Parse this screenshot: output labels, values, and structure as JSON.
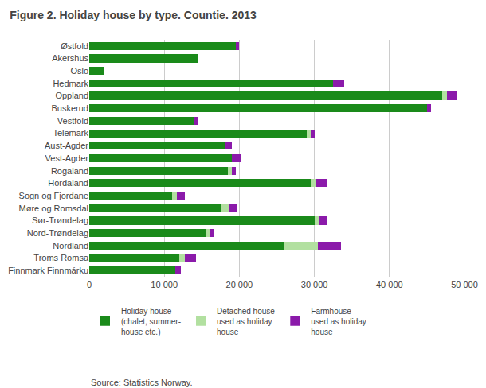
{
  "chart_data": {
    "type": "bar",
    "orientation": "horizontal",
    "stacked": true,
    "title": "Figure 2. Holiday house by type. Countie. 2013",
    "categories": [
      "Østfold",
      "Akershus",
      "Oslo",
      "Hedmark",
      "Oppland",
      "Buskerud",
      "Vestfold",
      "Telemark",
      "Aust-Agder",
      "Vest-Agder",
      "Rogaland",
      "Hordaland",
      "Sogn og Fjordane",
      "Møre og Romsdal",
      "Sør-Trøndelag",
      "Nord-Trøndelag",
      "Nordland",
      "Troms Romsa",
      "Finnmark Finnmárku"
    ],
    "series": [
      {
        "name": "Holiday house\n(chalet, summer-\nhouse etc.)",
        "color": "#1a8a1a",
        "values": [
          19500,
          14500,
          2000,
          32500,
          47000,
          45000,
          14000,
          29000,
          18000,
          19000,
          18500,
          29500,
          11000,
          17500,
          30000,
          15500,
          26000,
          12000,
          11500
        ]
      },
      {
        "name": "Detached house\nused as holiday\nhouse",
        "color": "#b2e0a0",
        "values": [
          0,
          0,
          0,
          0,
          700,
          0,
          0,
          500,
          0,
          0,
          500,
          700,
          700,
          1200,
          700,
          500,
          4500,
          700,
          0
        ]
      },
      {
        "name": "Farmhouse\nused as holiday\nhouse",
        "color": "#8b1aaa",
        "values": [
          500,
          0,
          0,
          1500,
          1200,
          500,
          500,
          500,
          1000,
          1200,
          500,
          1500,
          1000,
          1000,
          1000,
          700,
          3000,
          1500,
          700
        ]
      }
    ],
    "xlim": [
      0,
      50000
    ],
    "xticks": [
      0,
      {
        "value": 10000,
        "label": "10 000"
      },
      {
        "value": 20000,
        "label": "20 000"
      },
      {
        "value": 30000,
        "label": "30 000"
      },
      {
        "value": 40000,
        "label": "40 000"
      },
      {
        "value": 50000,
        "label": "50 000"
      }
    ],
    "grid": true,
    "legend": "bottom",
    "annotations": [
      "Source: Statistics Norway."
    ]
  }
}
